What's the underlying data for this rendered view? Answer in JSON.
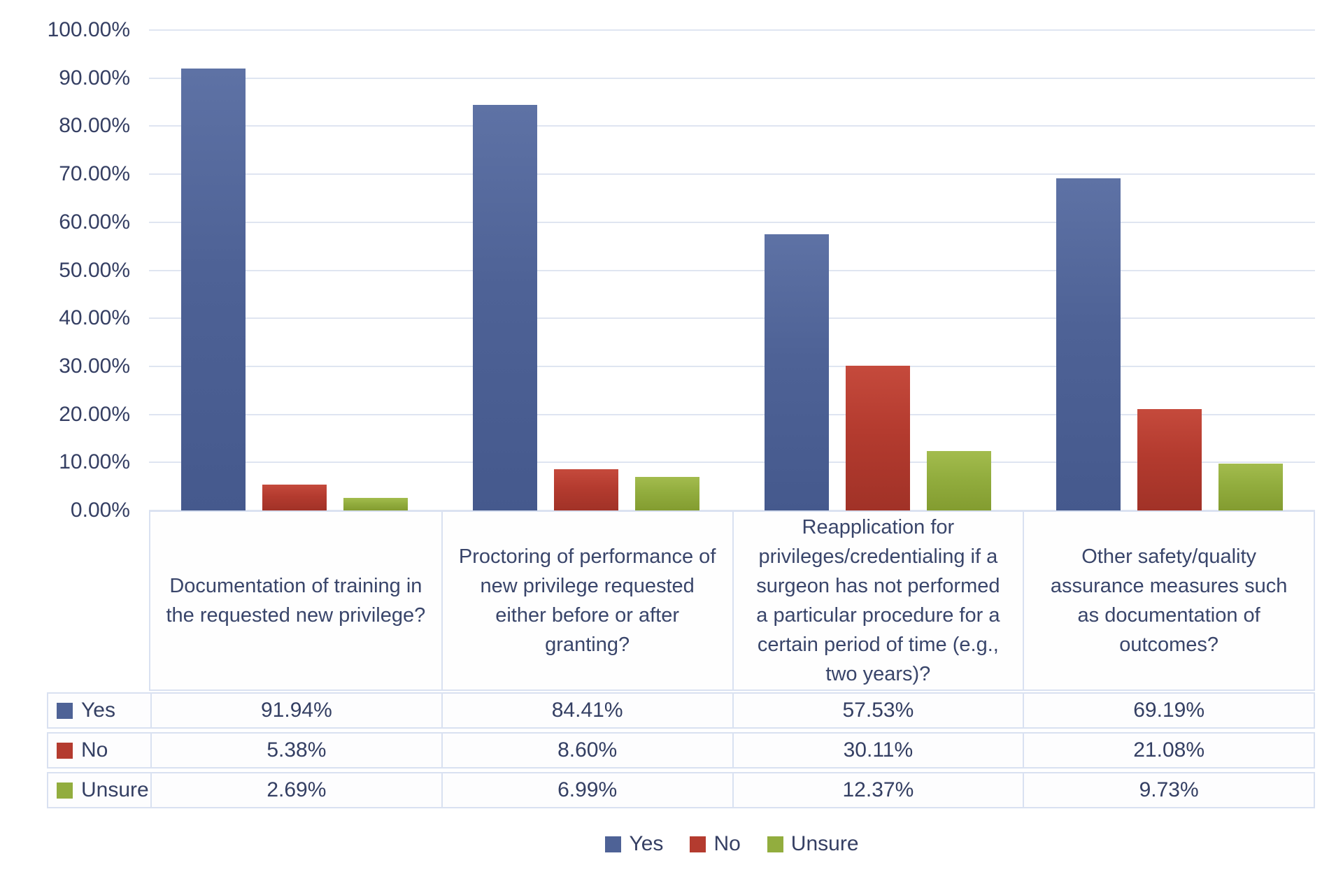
{
  "chart_data": {
    "type": "bar",
    "title": "",
    "xlabel": "",
    "ylabel": "",
    "ylim": [
      0,
      100
    ],
    "grid": true,
    "legend_position": "bottom",
    "y_ticks": [
      "100.00%",
      "90.00%",
      "80.00%",
      "70.00%",
      "60.00%",
      "50.00%",
      "40.00%",
      "30.00%",
      "20.00%",
      "10.00%",
      "0.00%"
    ],
    "categories": [
      "Documentation of training in the requested new privilege?",
      "Proctoring of performance of new privilege requested either before or after granting?",
      "Reapplication for privileges/credentialing if a surgeon has not performed a particular procedure for a certain period of time (e.g., two years)?",
      "Other safety/quality assurance measures such as documentation of outcomes?"
    ],
    "series": [
      {
        "name": "Yes",
        "values": [
          91.94,
          84.41,
          57.53,
          69.19
        ],
        "value_labels": [
          "91.94%",
          "84.41%",
          "57.53%",
          "69.19%"
        ],
        "color": "#4e6296",
        "color_light": "#5e72a5",
        "color_dark": "#45598d"
      },
      {
        "name": "No",
        "values": [
          5.38,
          8.6,
          30.11,
          21.08
        ],
        "value_labels": [
          "5.38%",
          "8.60%",
          "30.11%",
          "21.08%"
        ],
        "color": "#b43b2f",
        "color_light": "#c54a3c",
        "color_dark": "#a13227"
      },
      {
        "name": "Unsure",
        "values": [
          2.69,
          6.99,
          12.37,
          9.73
        ],
        "value_labels": [
          "2.69%",
          "6.99%",
          "12.37%",
          "9.73%"
        ],
        "color": "#92ad3e",
        "color_light": "#a3bc4e",
        "color_dark": "#839c30"
      }
    ],
    "colors": {
      "text": "#3a4468",
      "gridline": "#dfe5f1",
      "table_border": "#d9e1f1",
      "background": "#ffffff"
    }
  }
}
